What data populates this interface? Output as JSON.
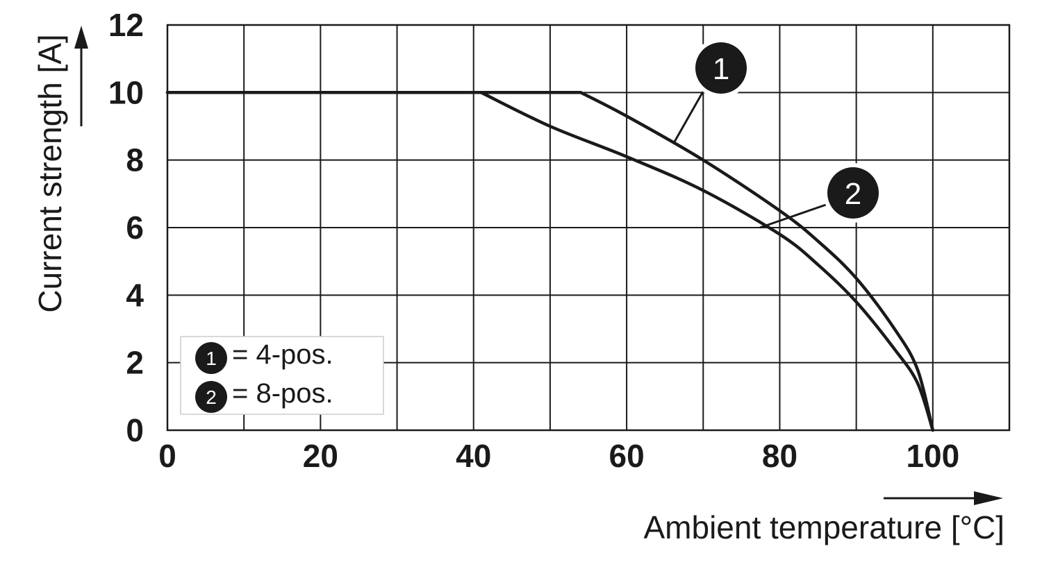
{
  "chart_data": {
    "type": "line",
    "xlabel": "Ambient temperature [°C]",
    "ylabel": "Current strength [A]",
    "xlim": [
      0,
      110
    ],
    "ylim": [
      0,
      12
    ],
    "x_ticks": [
      "0",
      "20",
      "40",
      "60",
      "80",
      "100"
    ],
    "y_ticks": [
      "0",
      "2",
      "4",
      "6",
      "8",
      "10",
      "12"
    ],
    "grid": true,
    "series": [
      {
        "name": "1",
        "x": [
          0,
          54,
          60,
          70,
          80,
          85,
          90,
          95,
          98,
          100
        ],
        "y": [
          10,
          10,
          9.3,
          8.0,
          6.5,
          5.6,
          4.5,
          3.0,
          1.8,
          0
        ]
      },
      {
        "name": "2",
        "x": [
          0,
          41,
          50,
          60,
          70,
          80,
          85,
          90,
          95,
          98,
          100
        ],
        "y": [
          10,
          10,
          9.0,
          8.1,
          7.1,
          5.8,
          4.9,
          3.8,
          2.4,
          1.4,
          0
        ]
      }
    ],
    "callouts": [
      {
        "label": "1",
        "series": 0
      },
      {
        "label": "2",
        "series": 1
      }
    ],
    "legend": {
      "placement": "bottom-left",
      "entries": [
        {
          "marker": "1",
          "text": "= 4-pos."
        },
        {
          "marker": "2",
          "text": "= 8-pos."
        }
      ]
    },
    "colors": {
      "line": "#1a1a1a",
      "grid": "#1a1a1a",
      "background": "#ffffff"
    }
  }
}
